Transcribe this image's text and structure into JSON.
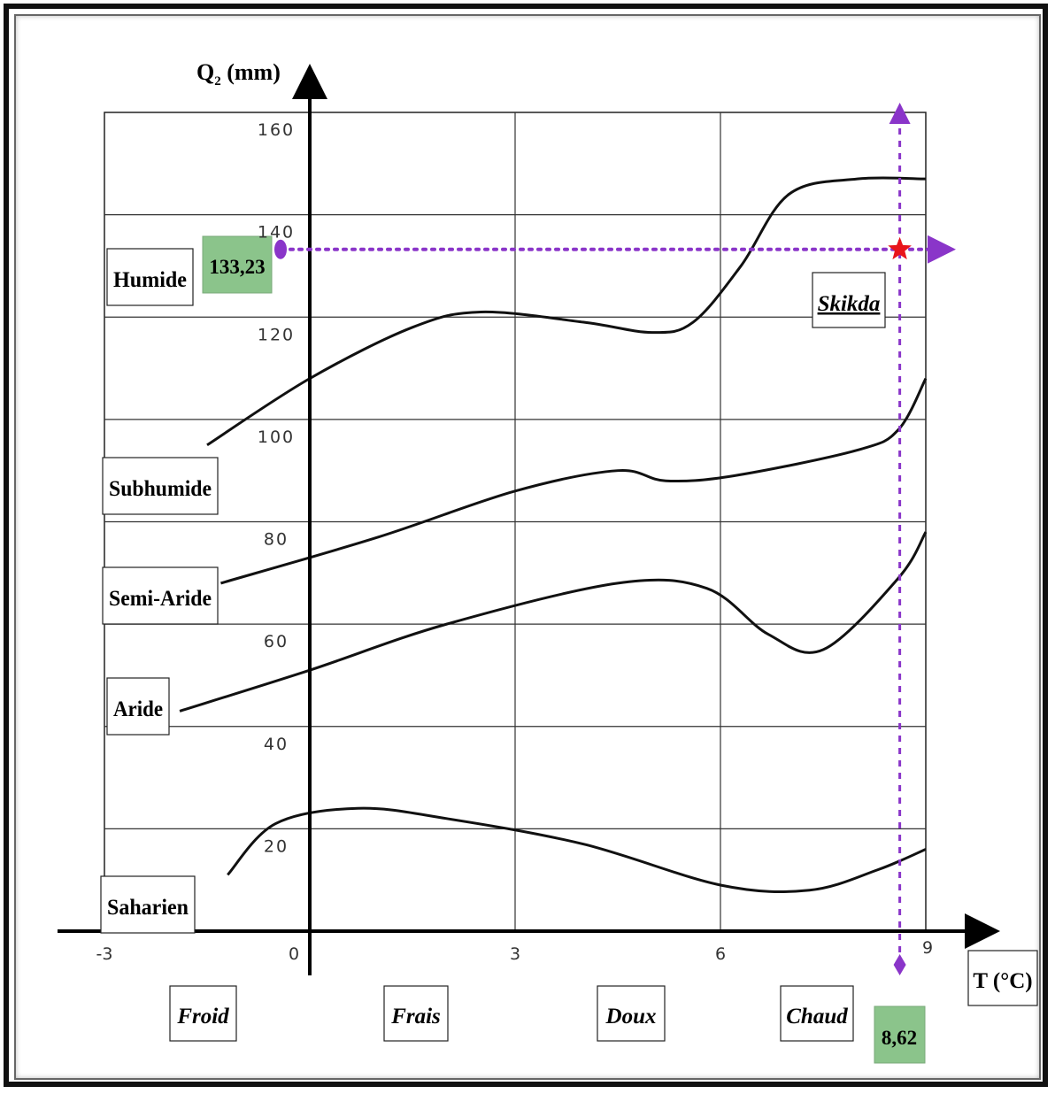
{
  "chart_data": {
    "type": "line",
    "ylabel_main": "Q",
    "ylabel_sub": "2",
    "ylabel_unit": " (mm)",
    "xlabel": "T (°C)",
    "xlim": [
      -3,
      9
    ],
    "ylim": [
      0,
      160
    ],
    "x_ticks": [
      "-3",
      "0",
      "3",
      "6",
      "9"
    ],
    "y_ticks": [
      "20",
      "40",
      "60",
      "80",
      "100",
      "120",
      "140",
      "160"
    ],
    "grid": true,
    "zones": [
      "Humide",
      "Subhumide",
      "Semi-Aride",
      "Aride",
      "Saharien"
    ],
    "temperature_classes": [
      "Froid",
      "Frais",
      "Doux",
      "Chaud"
    ],
    "series": [
      {
        "x": [
          -1.5,
          0,
          1.5,
          2.5,
          4,
          5,
          5.6,
          6.3,
          7,
          8,
          9
        ],
        "values": [
          95,
          108,
          118,
          121,
          119,
          117,
          119,
          130,
          144,
          147,
          147
        ]
      },
      {
        "x": [
          -1.3,
          1,
          3,
          4.5,
          5.2,
          6.2,
          8,
          8.6,
          9
        ],
        "values": [
          68,
          77,
          86,
          90,
          88,
          89,
          94,
          98,
          108
        ]
      },
      {
        "x": [
          -1.9,
          0,
          2,
          4.5,
          5.8,
          6.7,
          7.5,
          8.6,
          9
        ],
        "values": [
          43,
          51,
          60,
          68,
          67,
          58,
          55,
          69,
          78
        ]
      },
      {
        "x": [
          -1.2,
          -0.5,
          0.7,
          2,
          4,
          6,
          7.3,
          8.3,
          9
        ],
        "values": [
          11,
          21,
          24,
          22,
          17,
          9,
          8,
          12,
          16
        ]
      }
    ],
    "station": {
      "name": "Skikda",
      "x": 8.62,
      "y": 133.23,
      "x_label": "8,62",
      "y_label": "133,23"
    },
    "colors": {
      "curve": "#111111",
      "guide": "#8a35c9",
      "marker": "#e8141c",
      "value_box": "#8bc48b"
    }
  }
}
